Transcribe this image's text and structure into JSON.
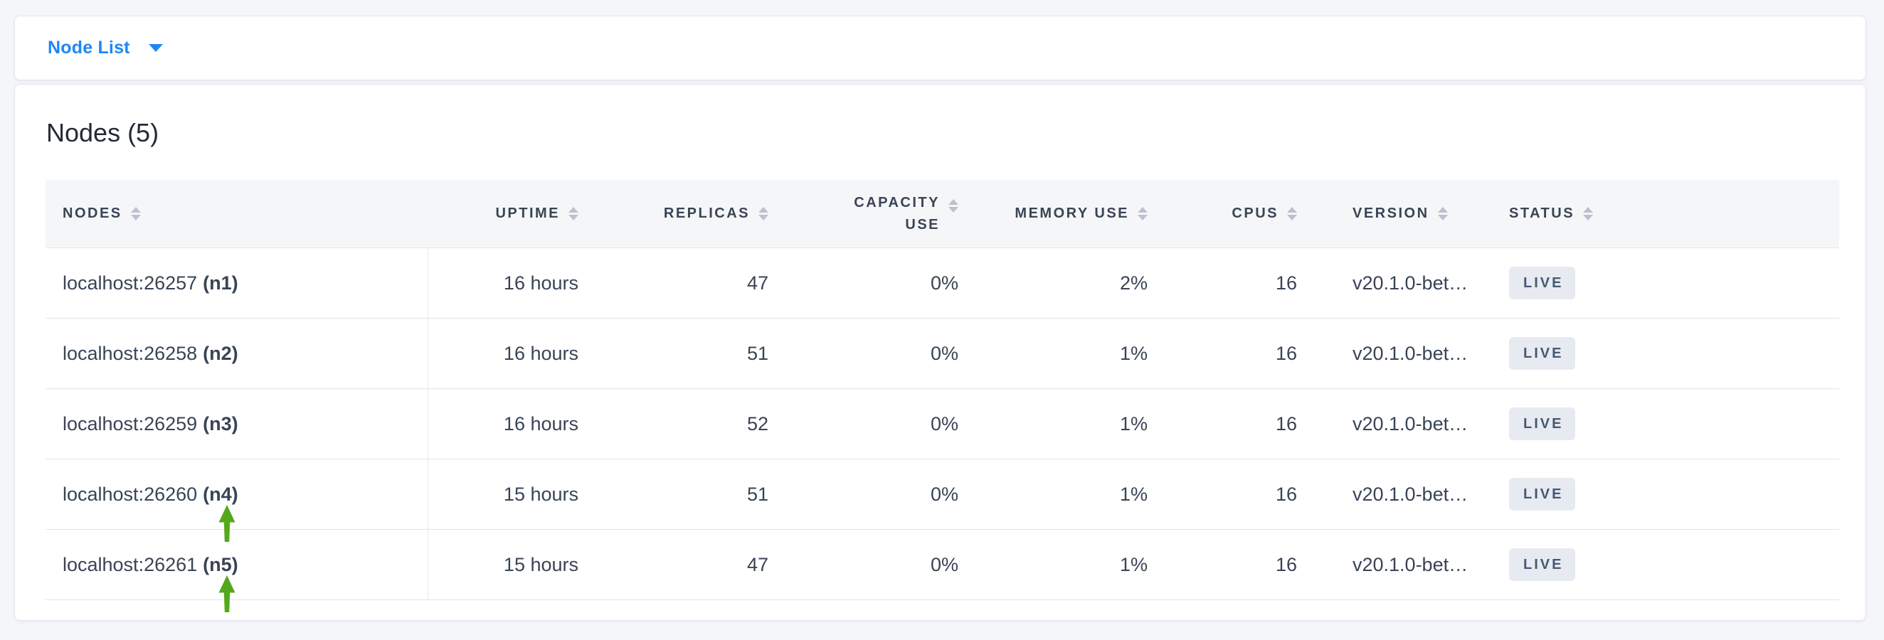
{
  "page": {
    "background_color": "#f5f6fa",
    "accent_blue": "#1f87f5",
    "arrow_green": "#54a81b",
    "badge_bg": "#e7eaf1",
    "badge_text_color": "#475872"
  },
  "icons": {
    "dropdown_caret": "caret-down-icon",
    "column_sort": "sort-arrows-icon",
    "annotation": "green-up-arrow-icon"
  },
  "topbar": {
    "dropdown_label": "Node List"
  },
  "main": {
    "title": "Nodes (5)",
    "table": {
      "columns": [
        {
          "key": "nodes",
          "label": "NODES",
          "align": "left"
        },
        {
          "key": "uptime",
          "label": "UPTIME",
          "align": "right"
        },
        {
          "key": "replicas",
          "label": "REPLICAS",
          "align": "right"
        },
        {
          "key": "capacity_use",
          "label": "CAPACITY USE",
          "align": "right",
          "wrap": true
        },
        {
          "key": "memory_use",
          "label": "MEMORY USE",
          "align": "right"
        },
        {
          "key": "cpus",
          "label": "CPUS",
          "align": "right"
        },
        {
          "key": "version",
          "label": "VERSION",
          "align": "left"
        },
        {
          "key": "status",
          "label": "STATUS",
          "align": "left"
        }
      ],
      "rows": [
        {
          "address": "localhost:26257",
          "node_id": "(n1)",
          "uptime": "16 hours",
          "replicas": "47",
          "capacity_use": "0%",
          "memory_use": "2%",
          "cpus": "16",
          "version": "v20.1.0-bet…",
          "status": "LIVE",
          "annotated": false
        },
        {
          "address": "localhost:26258",
          "node_id": "(n2)",
          "uptime": "16 hours",
          "replicas": "51",
          "capacity_use": "0%",
          "memory_use": "1%",
          "cpus": "16",
          "version": "v20.1.0-bet…",
          "status": "LIVE",
          "annotated": false
        },
        {
          "address": "localhost:26259",
          "node_id": "(n3)",
          "uptime": "16 hours",
          "replicas": "52",
          "capacity_use": "0%",
          "memory_use": "1%",
          "cpus": "16",
          "version": "v20.1.0-bet…",
          "status": "LIVE",
          "annotated": false
        },
        {
          "address": "localhost:26260",
          "node_id": "(n4)",
          "uptime": "15 hours",
          "replicas": "51",
          "capacity_use": "0%",
          "memory_use": "1%",
          "cpus": "16",
          "version": "v20.1.0-bet…",
          "status": "LIVE",
          "annotated": true
        },
        {
          "address": "localhost:26261",
          "node_id": "(n5)",
          "uptime": "15 hours",
          "replicas": "47",
          "capacity_use": "0%",
          "memory_use": "1%",
          "cpus": "16",
          "version": "v20.1.0-bet…",
          "status": "LIVE",
          "annotated": true
        }
      ]
    }
  }
}
